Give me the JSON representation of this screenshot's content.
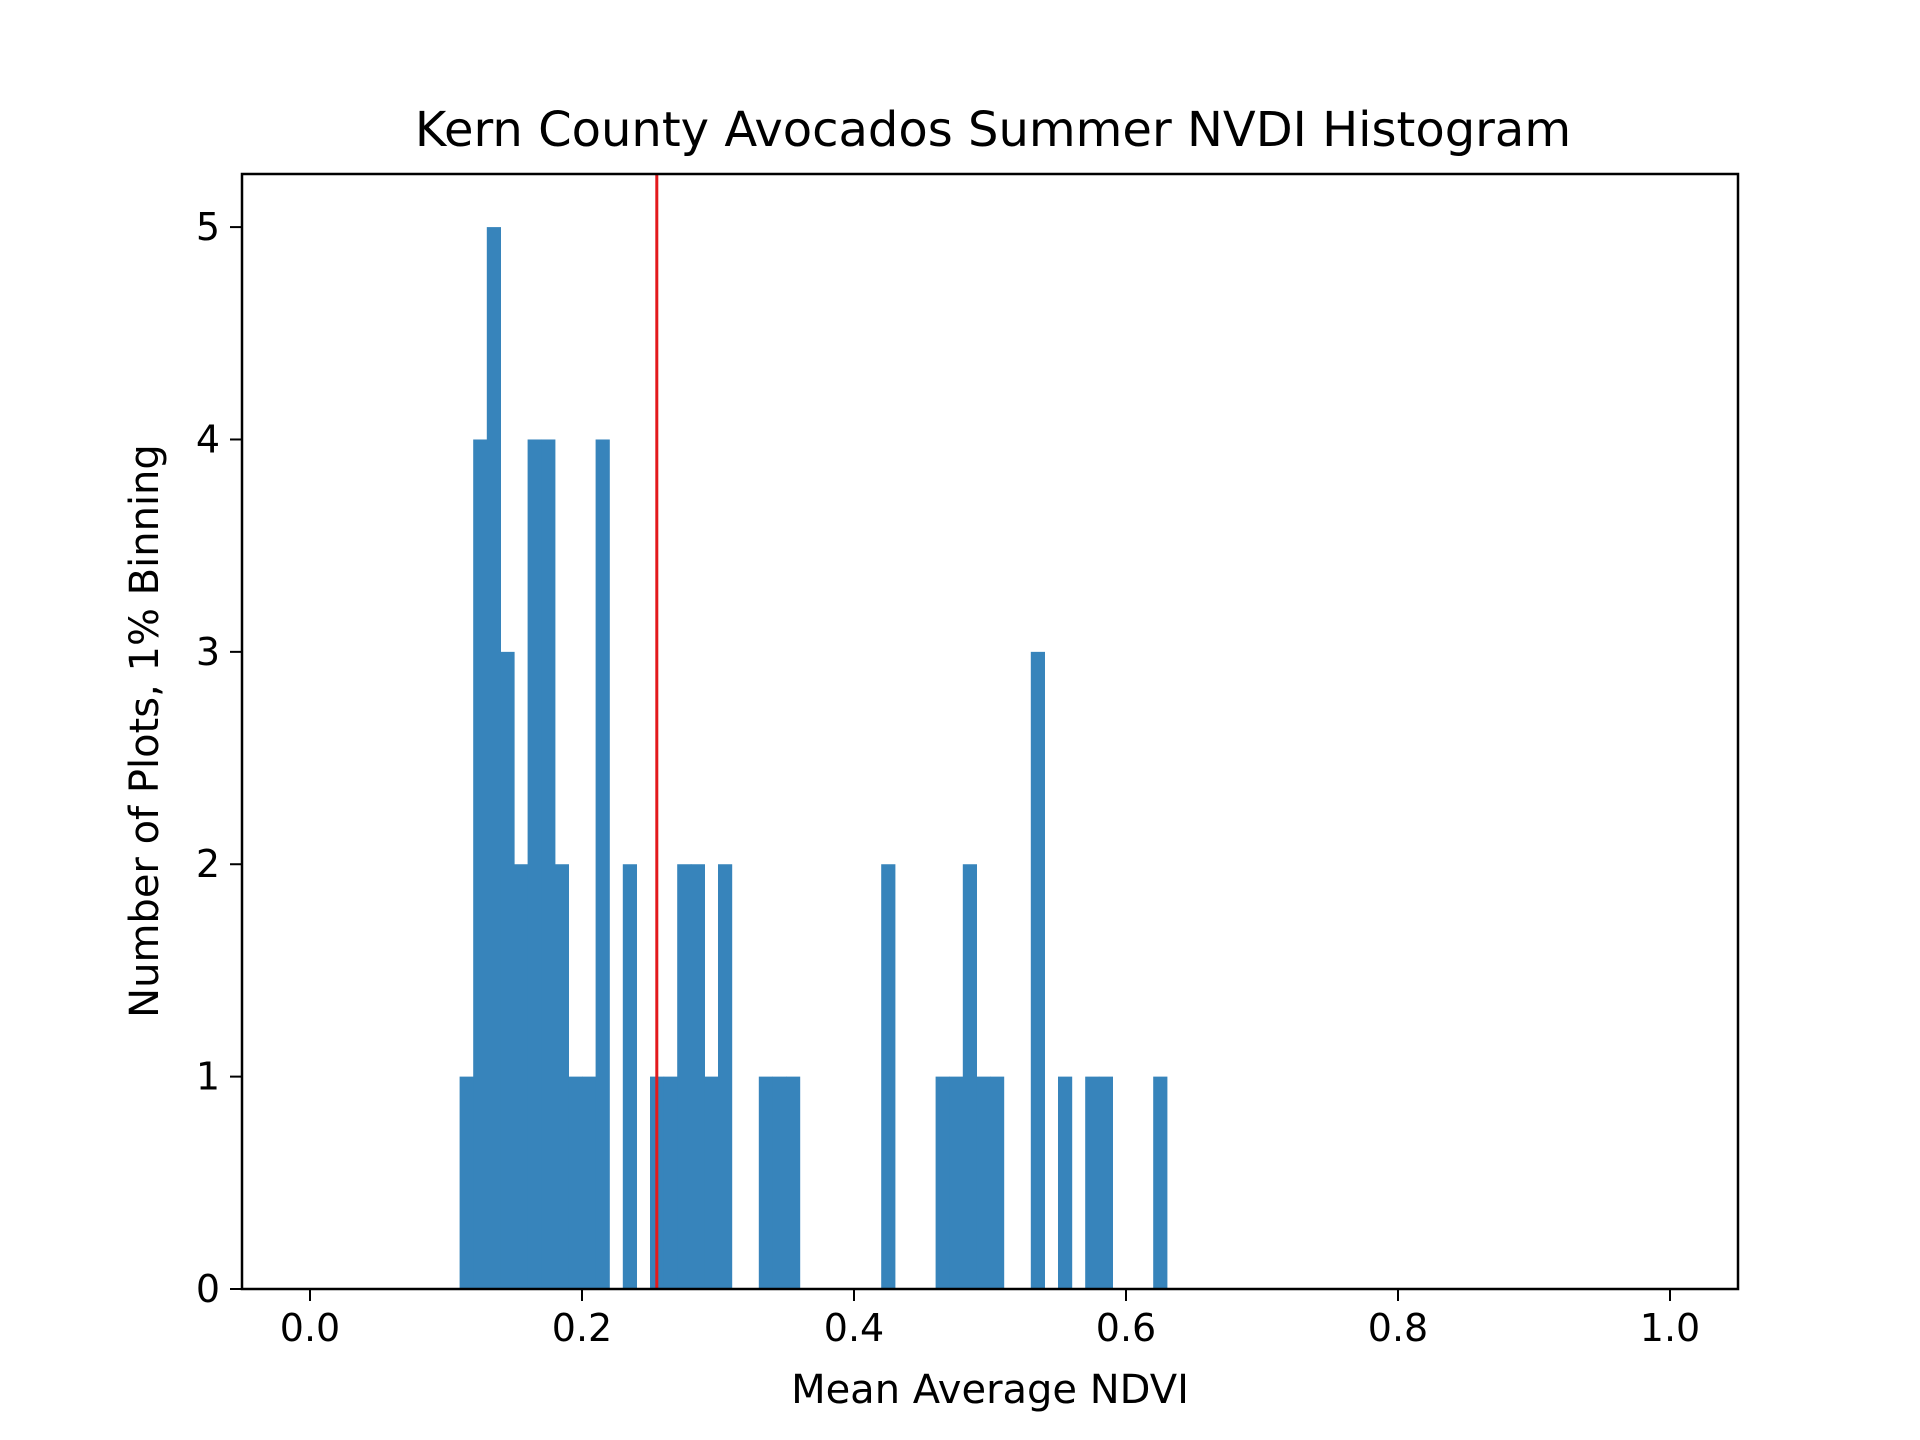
{
  "chart_data": {
    "type": "bar",
    "title": "Kern County Avocados Summer NVDI Histogram",
    "xlabel": "Mean Average NDVI",
    "ylabel": "Number of Plots, 1% Binning",
    "xlim": [
      -0.05,
      1.05
    ],
    "ylim": [
      0,
      5.25
    ],
    "xticks": [
      "0.0",
      "0.2",
      "0.4",
      "0.6",
      "0.8",
      "1.0"
    ],
    "yticks": [
      "0",
      "1",
      "2",
      "3",
      "4",
      "5"
    ],
    "bin_width": 0.01,
    "bins": [
      {
        "x": 0.11,
        "count": 1
      },
      {
        "x": 0.12,
        "count": 4
      },
      {
        "x": 0.13,
        "count": 5
      },
      {
        "x": 0.14,
        "count": 3
      },
      {
        "x": 0.15,
        "count": 2
      },
      {
        "x": 0.16,
        "count": 4
      },
      {
        "x": 0.17,
        "count": 4
      },
      {
        "x": 0.18,
        "count": 2
      },
      {
        "x": 0.19,
        "count": 1
      },
      {
        "x": 0.2,
        "count": 1
      },
      {
        "x": 0.21,
        "count": 4
      },
      {
        "x": 0.23,
        "count": 2
      },
      {
        "x": 0.25,
        "count": 1
      },
      {
        "x": 0.26,
        "count": 1
      },
      {
        "x": 0.27,
        "count": 2
      },
      {
        "x": 0.28,
        "count": 2
      },
      {
        "x": 0.29,
        "count": 1
      },
      {
        "x": 0.3,
        "count": 2
      },
      {
        "x": 0.33,
        "count": 1
      },
      {
        "x": 0.34,
        "count": 1
      },
      {
        "x": 0.35,
        "count": 1
      },
      {
        "x": 0.42,
        "count": 2
      },
      {
        "x": 0.46,
        "count": 1
      },
      {
        "x": 0.47,
        "count": 1
      },
      {
        "x": 0.48,
        "count": 2
      },
      {
        "x": 0.49,
        "count": 1
      },
      {
        "x": 0.5,
        "count": 1
      },
      {
        "x": 0.53,
        "count": 3
      },
      {
        "x": 0.55,
        "count": 1
      },
      {
        "x": 0.57,
        "count": 1
      },
      {
        "x": 0.58,
        "count": 1
      },
      {
        "x": 0.62,
        "count": 1
      }
    ],
    "mean_line": {
      "x": 0.255,
      "color": "#e31a1c"
    },
    "bar_color": "#3784bb",
    "grid": false,
    "legend": "none"
  }
}
